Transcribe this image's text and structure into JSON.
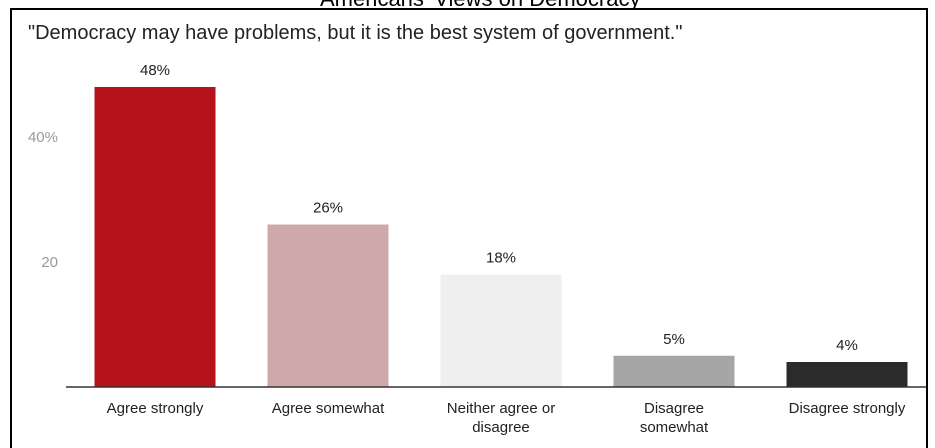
{
  "chart_data": {
    "type": "bar",
    "title": "\"Democracy may have problems, but it is the best system of government.\"",
    "categories": [
      "Agree strongly",
      "Agree somewhat",
      "Neither agree or disagree",
      "Disagree somewhat",
      "Disagree strongly"
    ],
    "category_lines": [
      [
        "Agree strongly"
      ],
      [
        "Agree somewhat"
      ],
      [
        "Neither agree or",
        "disagree"
      ],
      [
        "Disagree",
        "somewhat"
      ],
      [
        "Disagree strongly"
      ]
    ],
    "values": [
      48,
      26,
      18,
      5,
      4
    ],
    "value_labels": [
      "48%",
      "26%",
      "18%",
      "5%",
      "4%"
    ],
    "colors": [
      "#b5121b",
      "#cfa9a9",
      "#efefef",
      "#a6a6a6",
      "#2b2b2b"
    ],
    "ylim": [
      0,
      50
    ],
    "yticks": [
      {
        "value": 40,
        "label": "40%"
      },
      {
        "value": 20,
        "label": "20"
      }
    ],
    "grid": false,
    "xlabel": "",
    "ylabel": ""
  },
  "header": {
    "cut_text": "Americans' Views on Democracy"
  }
}
